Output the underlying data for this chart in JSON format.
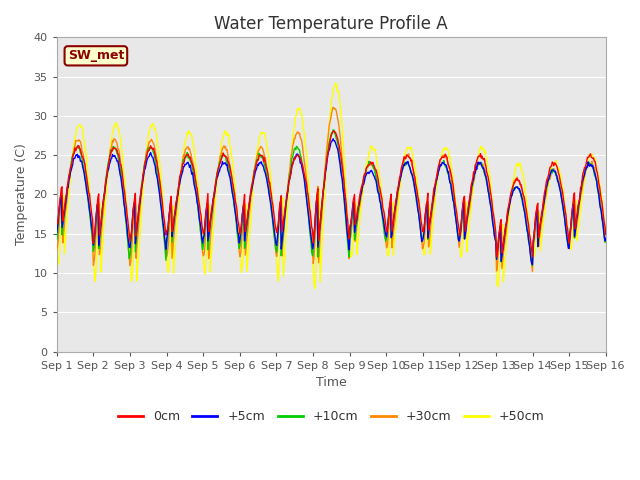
{
  "title": "Water Temperature Profile A",
  "xlabel": "Time",
  "ylabel": "Temperature (C)",
  "ylim": [
    0,
    40
  ],
  "xlim": [
    0,
    15
  ],
  "xtick_labels": [
    "Sep 1",
    "Sep 2",
    "Sep 3",
    "Sep 4",
    "Sep 5",
    "Sep 6",
    "Sep 7",
    "Sep 8",
    "Sep 9",
    "Sep 10",
    "Sep 11",
    "Sep 12",
    "Sep 13",
    "Sep 14",
    "Sep 15",
    "Sep 16"
  ],
  "xtick_positions": [
    0,
    1,
    2,
    3,
    4,
    5,
    6,
    7,
    8,
    9,
    10,
    11,
    12,
    13,
    14,
    15
  ],
  "ytick_labels": [
    "0",
    "5",
    "10",
    "15",
    "20",
    "25",
    "30",
    "35",
    "40"
  ],
  "ytick_positions": [
    0,
    5,
    10,
    15,
    20,
    25,
    30,
    35,
    40
  ],
  "line_colors": [
    "#ff0000",
    "#0000ff",
    "#00cc00",
    "#ff8800",
    "#ffff00"
  ],
  "line_labels": [
    "0cm",
    "+5cm",
    "+10cm",
    "+30cm",
    "+50cm"
  ],
  "grid_color": "#ffffff",
  "bg_color": "#e8e8e8",
  "annotation_text": "SW_met",
  "title_fontsize": 12,
  "axis_fontsize": 9,
  "tick_fontsize": 8
}
